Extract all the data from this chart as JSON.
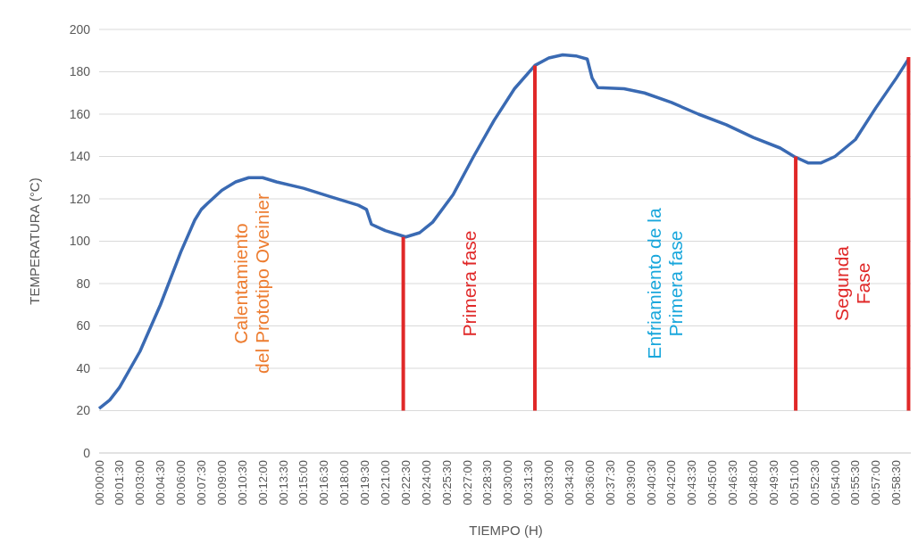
{
  "chart_data": {
    "type": "line",
    "xlabel": "TIEMPO (H)",
    "ylabel": "TEMPERATURA (°C)",
    "xlim": [
      0,
      0.995
    ],
    "ylim": [
      0,
      200
    ],
    "yticks": [
      0,
      20,
      40,
      60,
      80,
      100,
      120,
      140,
      160,
      180,
      200
    ],
    "xticks": [
      {
        "value": 0,
        "label": "00:00:00"
      },
      {
        "value": 0.025,
        "label": "00:01:30"
      },
      {
        "value": 0.05,
        "label": "00:03:00"
      },
      {
        "value": 0.075,
        "label": "00:04:30"
      },
      {
        "value": 0.1,
        "label": "00:06:00"
      },
      {
        "value": 0.125,
        "label": "00:07:30"
      },
      {
        "value": 0.15,
        "label": "00:09:00"
      },
      {
        "value": 0.175,
        "label": "00:10:30"
      },
      {
        "value": 0.2,
        "label": "00:12:00"
      },
      {
        "value": 0.225,
        "label": "00:13:30"
      },
      {
        "value": 0.25,
        "label": "00:15:00"
      },
      {
        "value": 0.275,
        "label": "00:16:30"
      },
      {
        "value": 0.3,
        "label": "00:18:00"
      },
      {
        "value": 0.325,
        "label": "00:19:30"
      },
      {
        "value": 0.35,
        "label": "00:21:00"
      },
      {
        "value": 0.375,
        "label": "00:22:30"
      },
      {
        "value": 0.4,
        "label": "00:24:00"
      },
      {
        "value": 0.425,
        "label": "00:25:30"
      },
      {
        "value": 0.45,
        "label": "00:27:00"
      },
      {
        "value": 0.475,
        "label": "00:28:30"
      },
      {
        "value": 0.5,
        "label": "00:30:00"
      },
      {
        "value": 0.525,
        "label": "00:31:30"
      },
      {
        "value": 0.55,
        "label": "00:33:00"
      },
      {
        "value": 0.575,
        "label": "00:34:30"
      },
      {
        "value": 0.6,
        "label": "00:36:00"
      },
      {
        "value": 0.625,
        "label": "00:37:30"
      },
      {
        "value": 0.65,
        "label": "00:39:00"
      },
      {
        "value": 0.675,
        "label": "00:40:30"
      },
      {
        "value": 0.7,
        "label": "00:42:00"
      },
      {
        "value": 0.725,
        "label": "00:43:30"
      },
      {
        "value": 0.75,
        "label": "00:45:00"
      },
      {
        "value": 0.775,
        "label": "00:46:30"
      },
      {
        "value": 0.8,
        "label": "00:48:00"
      },
      {
        "value": 0.825,
        "label": "00:49:30"
      },
      {
        "value": 0.85,
        "label": "00:51:00"
      },
      {
        "value": 0.875,
        "label": "00:52:30"
      },
      {
        "value": 0.9,
        "label": "00:54:00"
      },
      {
        "value": 0.925,
        "label": "00:55:30"
      },
      {
        "value": 0.95,
        "label": "00:57:00"
      },
      {
        "value": 0.975,
        "label": "00:58:30"
      }
    ],
    "grid": "y",
    "marker": "none",
    "line_style": "solid",
    "series": [
      {
        "color": "#3a6ab3",
        "x": [
          0,
          0.013,
          0.025,
          0.05,
          0.075,
          0.1,
          0.117,
          0.125,
          0.133,
          0.15,
          0.167,
          0.183,
          0.2,
          0.217,
          0.25,
          0.283,
          0.317,
          0.327,
          0.333,
          0.35,
          0.375,
          0.392,
          0.408,
          0.433,
          0.458,
          0.483,
          0.508,
          0.533,
          0.55,
          0.567,
          0.583,
          0.597,
          0.603,
          0.61,
          0.642,
          0.667,
          0.7,
          0.733,
          0.767,
          0.8,
          0.833,
          0.85,
          0.867,
          0.883,
          0.9,
          0.925,
          0.95,
          0.975,
          0.99
        ],
        "values": [
          21,
          25,
          31,
          48,
          70,
          95,
          110,
          115,
          118,
          124,
          128,
          130,
          130,
          128,
          125,
          121,
          117,
          115,
          108,
          105,
          102,
          104,
          109,
          122,
          140,
          157,
          172,
          183,
          186.5,
          188,
          187.5,
          186,
          177,
          172.5,
          172,
          170,
          165.5,
          160,
          155,
          149,
          144,
          140,
          137,
          137,
          140,
          148,
          163,
          177,
          186
        ]
      },
      {
        "color": "#e02828",
        "x": [
          0.372,
          0.372
        ],
        "values": [
          20,
          102
        ]
      },
      {
        "color": "#e02828",
        "x": [
          0.533,
          0.533
        ],
        "values": [
          20,
          183
        ]
      },
      {
        "color": "#e02828",
        "x": [
          0.852,
          0.852
        ],
        "values": [
          20,
          140
        ]
      },
      {
        "color": "#e02828",
        "x": [
          0.99,
          0.99
        ],
        "values": [
          20,
          187
        ]
      }
    ],
    "annotations": [
      "Calentamiento\ndel Prototipo Oveinier",
      "Primera fase",
      "Enfriamiento de la\nPrimera fase",
      "Segunda\nFase"
    ]
  }
}
